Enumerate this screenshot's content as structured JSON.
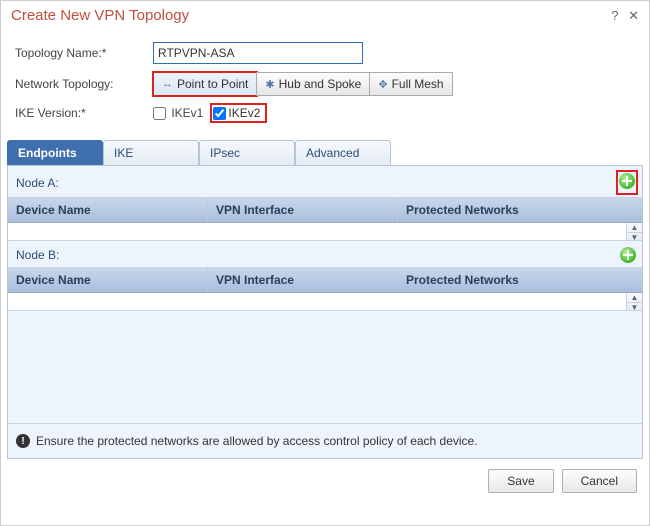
{
  "dialog": {
    "title": "Create New VPN Topology",
    "help_glyph": "?",
    "close_glyph": "✕"
  },
  "form": {
    "topology_name_label": "Topology Name:*",
    "topology_name_value": "RTPVPN-ASA",
    "network_topology_label": "Network Topology:",
    "topology_buttons": {
      "p2p": {
        "glyph": "↔",
        "label": "Point to Point",
        "active": true,
        "highlight": true
      },
      "hub": {
        "glyph": "✱",
        "label": "Hub and Spoke",
        "active": false,
        "highlight": false
      },
      "mesh": {
        "glyph": "✥",
        "label": "Full Mesh",
        "active": false,
        "highlight": false
      }
    },
    "ike_version_label": "IKE Version:*",
    "ike": {
      "v1_label": "IKEv1",
      "v1_checked": false,
      "v2_label": "IKEv2",
      "v2_checked": true,
      "v2_highlight": true
    }
  },
  "tabs": {
    "endpoints": "Endpoints",
    "ike": "IKE",
    "ipsec": "IPsec",
    "advanced": "Advanced",
    "active": "endpoints"
  },
  "nodes": {
    "a": {
      "label": "Node A:",
      "add_highlight": true
    },
    "b": {
      "label": "Node B:",
      "add_highlight": false
    },
    "columns": {
      "device": "Device Name",
      "interface": "VPN Interface",
      "networks": "Protected Networks"
    }
  },
  "footer": {
    "note": "Ensure the protected networks are allowed by access control policy of each device.",
    "save": "Save",
    "cancel": "Cancel"
  },
  "colors": {
    "title": "#c24f3e",
    "tab_active_bg": "#3f6faf",
    "highlight": "#d22"
  }
}
